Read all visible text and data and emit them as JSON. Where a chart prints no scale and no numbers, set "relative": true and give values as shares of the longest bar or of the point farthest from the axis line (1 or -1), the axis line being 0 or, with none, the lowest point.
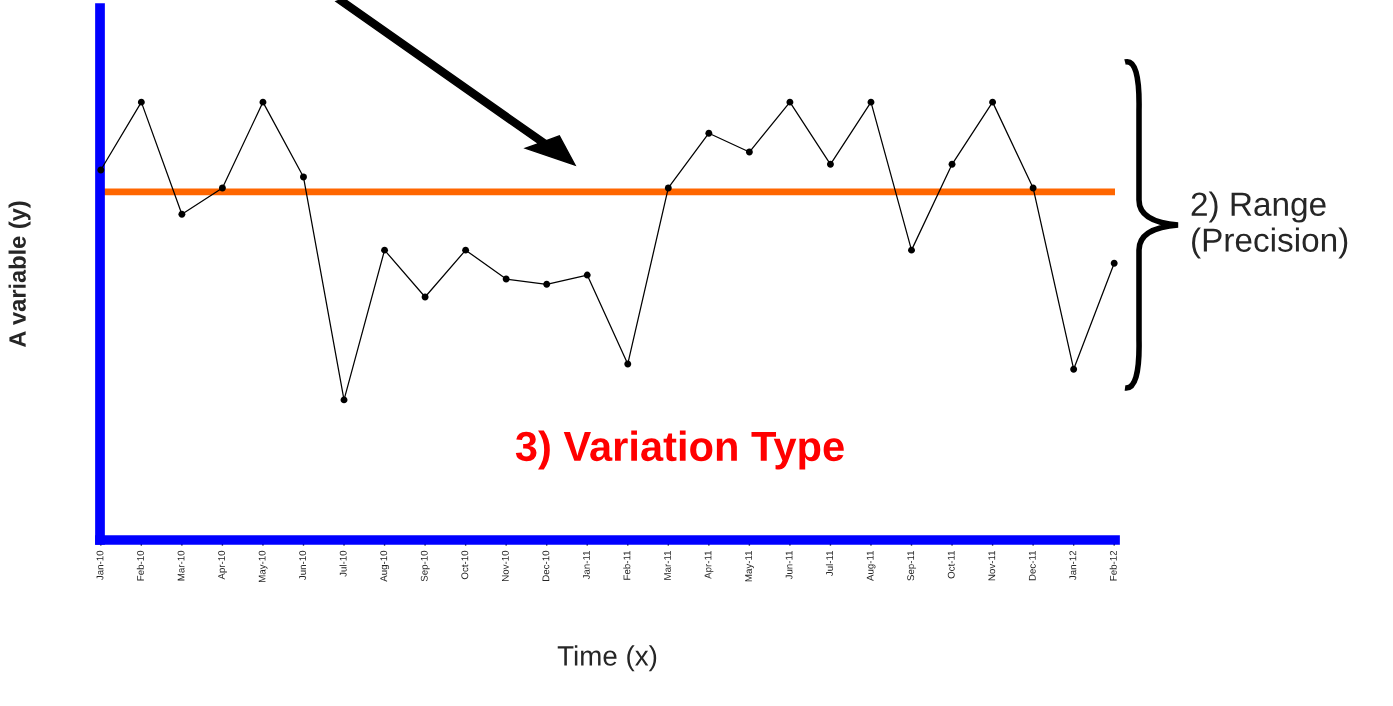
{
  "chart_data": {
    "type": "line",
    "relative": true,
    "xlabel": "Time (x)",
    "ylabel": "A variable (y)",
    "categories": [
      "Jan-10",
      "Feb-10",
      "Mar-10",
      "Apr-10",
      "May-10",
      "Jun-10",
      "Jul-10",
      "Aug-10",
      "Sep-10",
      "Oct-10",
      "Nov-10",
      "Dec-10",
      "Jan-11",
      "Feb-11",
      "Mar-11",
      "Apr-11",
      "May-11",
      "Jun-11",
      "Jul-11",
      "Aug-11",
      "Sep-11",
      "Oct-11",
      "Nov-11",
      "Dec-11",
      "Jan-12",
      "Feb-12"
    ],
    "series": [
      {
        "color": "#000000",
        "values": [
          0.845,
          1,
          0.744,
          0.804,
          1,
          0.829,
          0.32,
          0.662,
          0.555,
          0.662,
          0.596,
          0.584,
          0.605,
          0.402,
          0.804,
          0.929,
          0.886,
          1,
          0.858,
          1,
          0.662,
          0.858,
          1,
          0.804,
          0.39,
          0.632
        ]
      }
    ],
    "ref_lines": [
      {
        "axis": "y",
        "value": 0.795,
        "color": "#ff6600"
      }
    ],
    "annotations": [
      "2) Range (Precision)",
      "3) Variation Type"
    ],
    "marker": "circle",
    "line_style": "solid",
    "grid": false,
    "legend": false,
    "tick_labels": "x"
  }
}
